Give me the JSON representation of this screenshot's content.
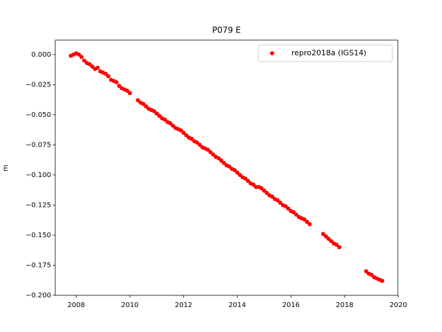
{
  "chart_data": {
    "type": "scatter",
    "title": "P079 E",
    "y_label": "m",
    "x": [
      2007.8,
      2007.9,
      2008.0,
      2008.1,
      2008.2,
      2008.3,
      2008.4,
      2008.5,
      2008.6,
      2008.7,
      2008.8,
      2008.9,
      2009.0,
      2009.1,
      2009.2,
      2009.3,
      2009.4,
      2009.5,
      2009.6,
      2009.7,
      2009.8,
      2009.9,
      2010.0,
      2010.3,
      2010.4,
      2010.5,
      2010.6,
      2010.7,
      2010.8,
      2010.9,
      2011.0,
      2011.1,
      2011.2,
      2011.3,
      2011.4,
      2011.5,
      2011.6,
      2011.7,
      2011.8,
      2011.9,
      2012.0,
      2012.1,
      2012.2,
      2012.3,
      2012.4,
      2012.5,
      2012.6,
      2012.7,
      2012.8,
      2012.9,
      2013.0,
      2013.1,
      2013.2,
      2013.3,
      2013.4,
      2013.5,
      2013.6,
      2013.7,
      2013.8,
      2013.9,
      2014.0,
      2014.1,
      2014.2,
      2014.3,
      2014.4,
      2014.5,
      2014.6,
      2014.7,
      2014.8,
      2014.9,
      2015.0,
      2015.1,
      2015.2,
      2015.3,
      2015.4,
      2015.5,
      2015.6,
      2015.7,
      2015.8,
      2015.9,
      2016.0,
      2016.1,
      2016.2,
      2016.3,
      2016.4,
      2016.5,
      2016.6,
      2016.7,
      2017.2,
      2017.3,
      2017.4,
      2017.5,
      2017.6,
      2017.7,
      2017.8,
      2018.8,
      2018.9,
      2019.0,
      2019.1,
      2019.2,
      2019.3,
      2019.4
    ],
    "series": [
      {
        "name": "repro2018a (IGS14)",
        "color": "#ff0000",
        "values": [
          -0.001,
          0.0,
          0.001,
          0.0,
          -0.002,
          -0.005,
          -0.007,
          -0.008,
          -0.01,
          -0.012,
          -0.011,
          -0.014,
          -0.015,
          -0.016,
          -0.018,
          -0.021,
          -0.022,
          -0.023,
          -0.026,
          -0.028,
          -0.029,
          -0.03,
          -0.032,
          -0.038,
          -0.04,
          -0.041,
          -0.043,
          -0.045,
          -0.046,
          -0.047,
          -0.049,
          -0.051,
          -0.053,
          -0.054,
          -0.056,
          -0.057,
          -0.059,
          -0.061,
          -0.062,
          -0.063,
          -0.065,
          -0.067,
          -0.069,
          -0.07,
          -0.072,
          -0.073,
          -0.075,
          -0.077,
          -0.078,
          -0.079,
          -0.081,
          -0.083,
          -0.085,
          -0.086,
          -0.088,
          -0.09,
          -0.092,
          -0.093,
          -0.095,
          -0.096,
          -0.098,
          -0.1,
          -0.102,
          -0.103,
          -0.105,
          -0.107,
          -0.108,
          -0.11,
          -0.11,
          -0.111,
          -0.113,
          -0.115,
          -0.117,
          -0.118,
          -0.12,
          -0.121,
          -0.123,
          -0.125,
          -0.126,
          -0.128,
          -0.13,
          -0.131,
          -0.133,
          -0.135,
          -0.136,
          -0.137,
          -0.139,
          -0.141,
          -0.149,
          -0.151,
          -0.153,
          -0.155,
          -0.157,
          -0.158,
          -0.16,
          -0.18,
          -0.182,
          -0.183,
          -0.185,
          -0.186,
          -0.187,
          -0.188
        ]
      }
    ],
    "xlim": [
      2007.22,
      2019.98
    ],
    "xticks": [
      2008,
      2010,
      2012,
      2014,
      2016,
      2018,
      2020
    ],
    "ylim": [
      -0.2,
      0.012
    ],
    "yticks": [
      {
        "value": 0,
        "label": "0.000"
      },
      {
        "value": -0.025,
        "label": "−0.025"
      },
      {
        "value": -0.05,
        "label": "−0.050"
      },
      {
        "value": -0.075,
        "label": "−0.075"
      },
      {
        "value": -0.1,
        "label": "−0.100"
      },
      {
        "value": -0.125,
        "label": "−0.125"
      },
      {
        "value": -0.15,
        "label": "−0.150"
      },
      {
        "value": -0.175,
        "label": "−0.175"
      },
      {
        "value": -0.2,
        "label": "−0.200"
      }
    ],
    "legend": "upper right",
    "grid": false
  }
}
